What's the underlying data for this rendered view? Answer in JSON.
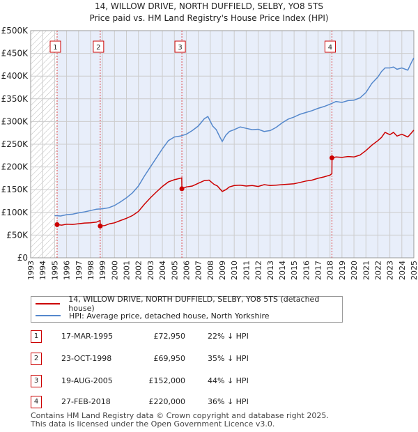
{
  "title_line1": "14, WILLOW DRIVE, NORTH DUFFIELD, SELBY, YO8 5TS",
  "title_line2": "Price paid vs. HM Land Registry's House Price Index (HPI)",
  "colors": {
    "property": "#cc0000",
    "hpi": "#5588cc",
    "band": "#e8eefa",
    "grid": "#cccccc"
  },
  "chart_data": {
    "type": "line",
    "ylabel": "",
    "xlabel": "",
    "ylim": [
      0,
      500000
    ],
    "xlim": [
      1993,
      2025
    ],
    "y_ticks": [
      0,
      50000,
      100000,
      150000,
      200000,
      250000,
      300000,
      350000,
      400000,
      450000,
      500000
    ],
    "y_tick_labels": [
      "£0",
      "£50K",
      "£100K",
      "£150K",
      "£200K",
      "£250K",
      "£300K",
      "£350K",
      "£400K",
      "£450K",
      "£500K"
    ],
    "x_ticks": [
      "1993",
      "1994",
      "1995",
      "1996",
      "1997",
      "1998",
      "1999",
      "2000",
      "2001",
      "2002",
      "2003",
      "2004",
      "2005",
      "2006",
      "2007",
      "2008",
      "2009",
      "2010",
      "2011",
      "2012",
      "2013",
      "2014",
      "2015",
      "2016",
      "2017",
      "2018",
      "2019",
      "2020",
      "2021",
      "2022",
      "2023",
      "2024",
      "2025"
    ],
    "series": [
      {
        "name": "14, WILLOW DRIVE, NORTH DUFFIELD, SELBY, YO8 5TS (detached house)",
        "color": "#cc0000",
        "x": [
          1995.21,
          1995.6,
          1996.0,
          1996.5,
          1997.0,
          1997.5,
          1998.0,
          1998.5,
          1998.8,
          1998.81,
          1999.2,
          1999.6,
          2000.0,
          2000.5,
          2001.0,
          2001.5,
          2002.0,
          2002.5,
          2003.0,
          2003.5,
          2004.0,
          2004.5,
          2005.0,
          2005.5,
          2005.62,
          2005.63,
          2006.0,
          2006.5,
          2007.0,
          2007.5,
          2007.9,
          2008.3,
          2008.6,
          2009.0,
          2009.3,
          2009.6,
          2010.0,
          2010.5,
          2011.0,
          2011.5,
          2012.0,
          2012.5,
          2013.0,
          2013.5,
          2014.0,
          2014.5,
          2015.0,
          2015.5,
          2016.0,
          2016.5,
          2017.0,
          2017.5,
          2018.0,
          2018.16,
          2018.17,
          2018.5,
          2019.0,
          2019.5,
          2020.0,
          2020.5,
          2021.0,
          2021.5,
          2022.0,
          2022.3,
          2022.6,
          2023.0,
          2023.3,
          2023.6,
          2024.0,
          2024.5,
          2024.8,
          2025.0
        ],
        "values": [
          72950,
          72000,
          74000,
          73500,
          75000,
          76500,
          77000,
          78500,
          82000,
          69950,
          71000,
          75000,
          77000,
          82000,
          87000,
          93000,
          102000,
          118000,
          132000,
          145000,
          157000,
          167000,
          172000,
          175000,
          176000,
          152000,
          156000,
          158000,
          164000,
          170000,
          171000,
          162000,
          158000,
          146000,
          150000,
          156000,
          159000,
          160000,
          158000,
          159000,
          157000,
          161000,
          159000,
          160000,
          161000,
          162000,
          163000,
          166000,
          169000,
          171000,
          175000,
          178000,
          182000,
          185000,
          220000,
          222000,
          221000,
          223000,
          222000,
          226000,
          236000,
          248000,
          258000,
          265000,
          276000,
          271000,
          276000,
          268000,
          272000,
          266000,
          275000,
          281000
        ]
      },
      {
        "name": "HPI: Average price, detached house, North Yorkshire",
        "color": "#5588cc",
        "x": [
          1995.0,
          1995.5,
          1996.0,
          1996.5,
          1997.0,
          1997.5,
          1998.0,
          1998.5,
          1999.0,
          1999.5,
          2000.0,
          2000.5,
          2001.0,
          2001.5,
          2002.0,
          2002.5,
          2003.0,
          2003.5,
          2004.0,
          2004.5,
          2005.0,
          2005.5,
          2006.0,
          2006.5,
          2007.0,
          2007.5,
          2007.8,
          2008.2,
          2008.5,
          2008.8,
          2009.0,
          2009.3,
          2009.6,
          2010.0,
          2010.5,
          2011.0,
          2011.5,
          2012.0,
          2012.5,
          2013.0,
          2013.5,
          2014.0,
          2014.5,
          2015.0,
          2015.5,
          2016.0,
          2016.5,
          2017.0,
          2017.5,
          2018.0,
          2018.5,
          2019.0,
          2019.5,
          2020.0,
          2020.5,
          2021.0,
          2021.5,
          2022.0,
          2022.3,
          2022.6,
          2023.0,
          2023.3,
          2023.6,
          2024.0,
          2024.5,
          2024.8,
          2025.0
        ],
        "values": [
          93000,
          92000,
          95000,
          96000,
          99000,
          101000,
          104000,
          107000,
          108000,
          110000,
          115000,
          123000,
          132000,
          143000,
          158000,
          180000,
          200000,
          220000,
          240000,
          258000,
          266000,
          268000,
          272000,
          280000,
          290000,
          306000,
          311000,
          290000,
          282000,
          266000,
          256000,
          270000,
          278000,
          282000,
          288000,
          285000,
          282000,
          283000,
          278000,
          280000,
          287000,
          297000,
          305000,
          310000,
          316000,
          320000,
          324000,
          329000,
          333000,
          338000,
          344000,
          342000,
          346000,
          347000,
          352000,
          364000,
          384000,
          398000,
          410000,
          418000,
          418000,
          420000,
          415000,
          418000,
          413000,
          430000,
          440000
        ]
      }
    ],
    "sale_markers": [
      {
        "label": "1",
        "x": 1995.21,
        "value": 72950
      },
      {
        "label": "2",
        "x": 1998.81,
        "value": 69950
      },
      {
        "label": "3",
        "x": 2005.63,
        "value": 152000
      },
      {
        "label": "4",
        "x": 2018.16,
        "value": 220000
      }
    ],
    "hatch_range": [
      1993,
      1995.21
    ]
  },
  "legend": {
    "property": "14, WILLOW DRIVE, NORTH DUFFIELD, SELBY, YO8 5TS (detached house)",
    "hpi": "HPI: Average price, detached house, North Yorkshire"
  },
  "transactions": [
    {
      "num": "1",
      "date": "17-MAR-1995",
      "price": "£72,950",
      "hpi": "22% ↓ HPI"
    },
    {
      "num": "2",
      "date": "23-OCT-1998",
      "price": "£69,950",
      "hpi": "35% ↓ HPI"
    },
    {
      "num": "3",
      "date": "19-AUG-2005",
      "price": "£152,000",
      "hpi": "44% ↓ HPI"
    },
    {
      "num": "4",
      "date": "27-FEB-2018",
      "price": "£220,000",
      "hpi": "36% ↓ HPI"
    }
  ],
  "footer_line1": "Contains HM Land Registry data © Crown copyright and database right 2025.",
  "footer_line2": "This data is licensed under the Open Government Licence v3.0."
}
